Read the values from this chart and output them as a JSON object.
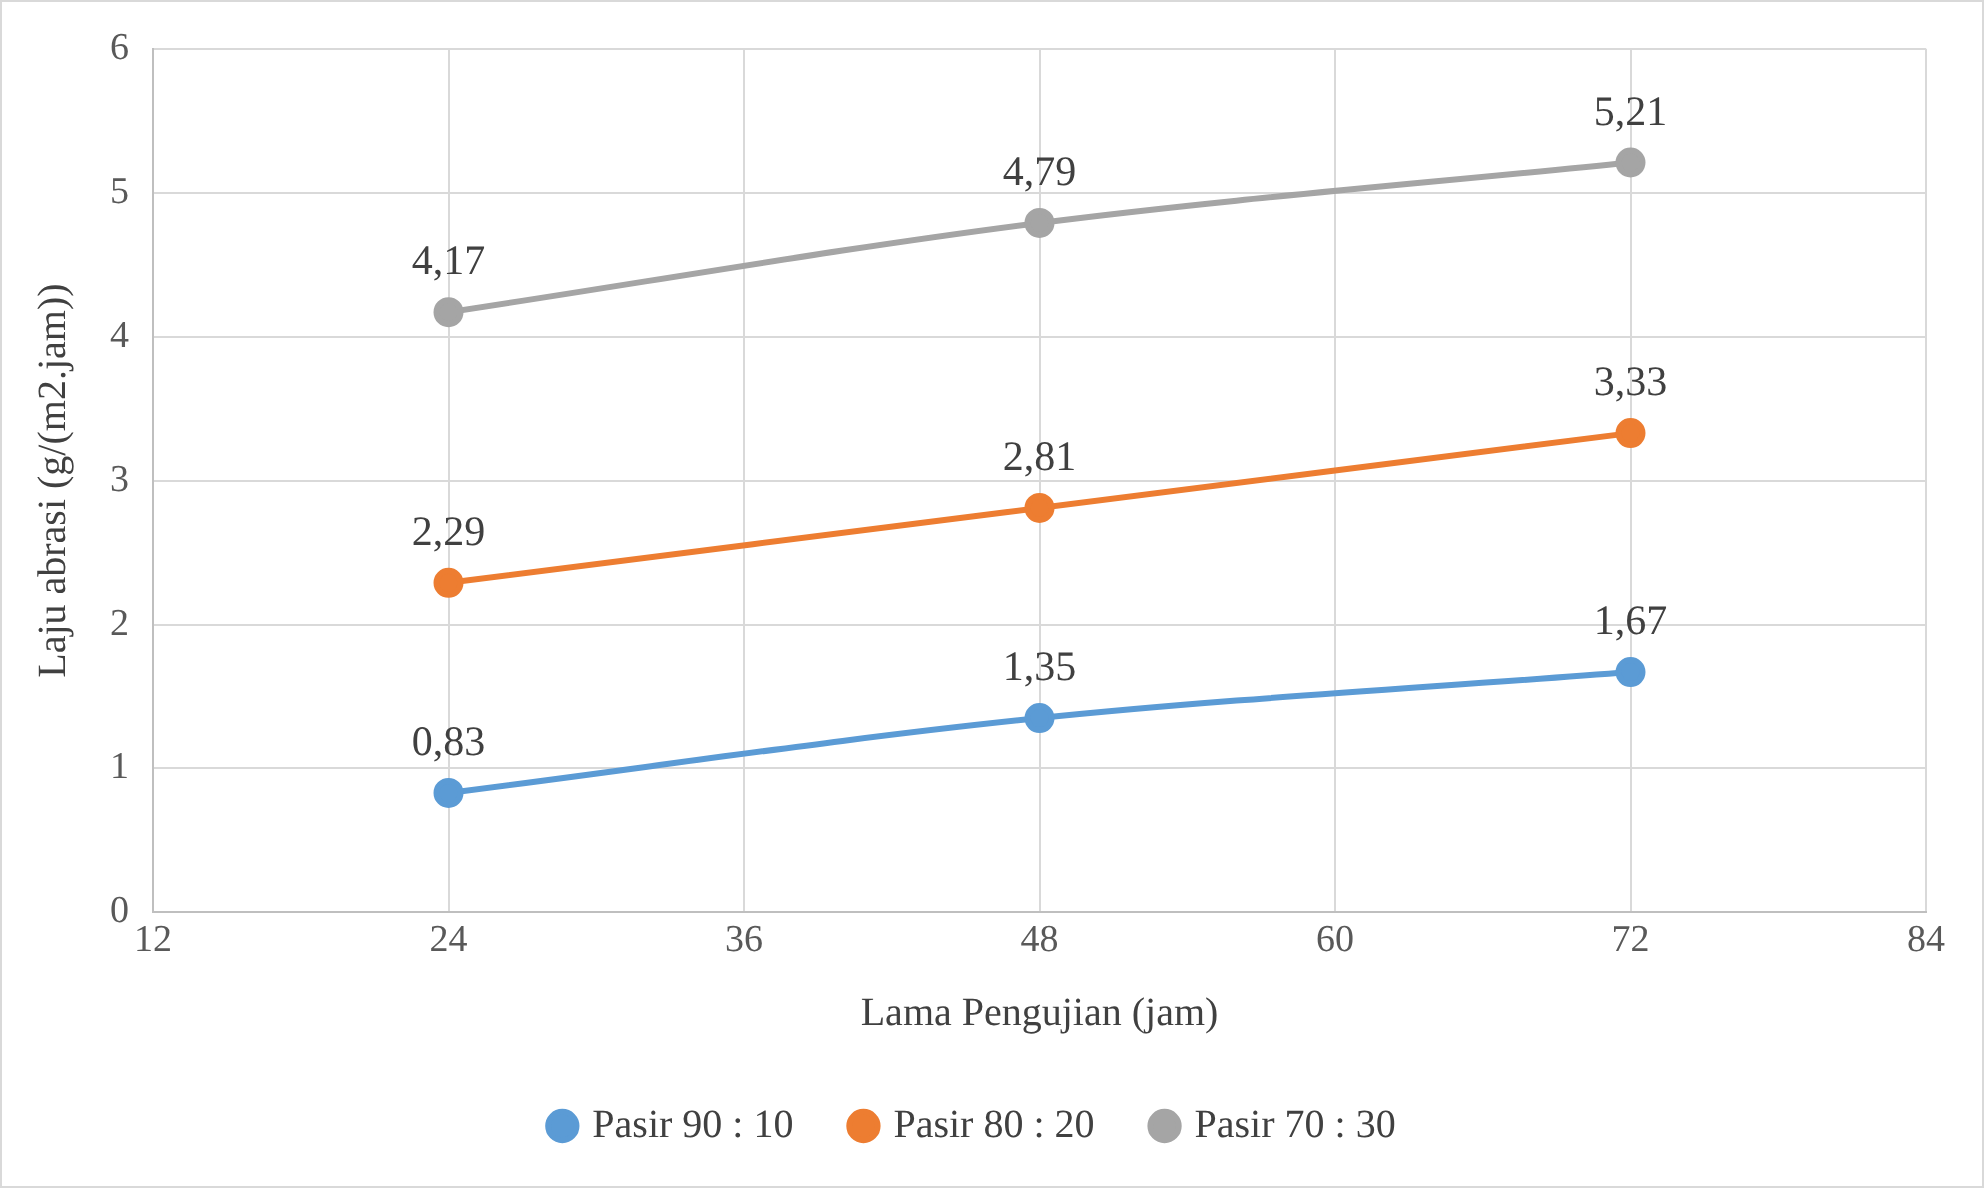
{
  "chart_data": {
    "type": "line",
    "xlabel": "Lama Pengujian (jam)",
    "ylabel": "Laju abrasi (g/(m2.jam))",
    "x": [
      24,
      48,
      72
    ],
    "series": [
      {
        "name": "Pasir 90 : 10",
        "color": "#5b9bd5",
        "values": [
          0.83,
          1.35,
          1.67
        ],
        "value_labels": [
          "0,83",
          "1,35",
          "1,67"
        ]
      },
      {
        "name": "Pasir 80 : 20",
        "color": "#ed7d31",
        "values": [
          2.29,
          2.81,
          3.33
        ],
        "value_labels": [
          "2,29",
          "2,81",
          "3,33"
        ]
      },
      {
        "name": "Pasir 70 : 30",
        "color": "#a5a5a5",
        "values": [
          4.17,
          4.79,
          5.21
        ],
        "value_labels": [
          "4,17",
          "4,79",
          "5,21"
        ]
      }
    ],
    "xlim": [
      12,
      84
    ],
    "xticks": [
      12,
      24,
      36,
      48,
      60,
      72,
      84
    ],
    "ylim": [
      0,
      6
    ],
    "yticks": [
      0,
      1,
      2,
      3,
      4,
      5,
      6
    ],
    "grid": true,
    "legend": "bottom",
    "marker": "circle",
    "line_style": "solid"
  }
}
